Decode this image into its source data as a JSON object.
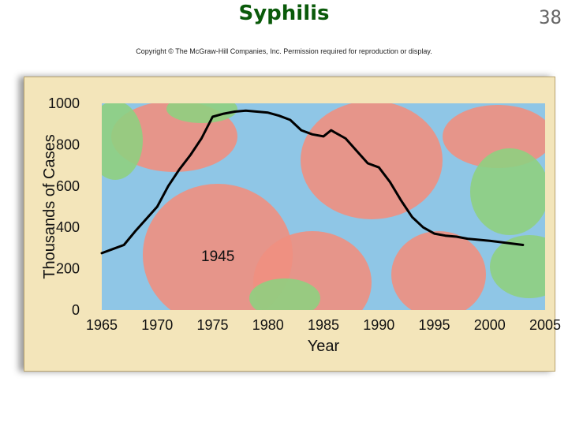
{
  "slide": {
    "title": "Syphilis",
    "number": "38",
    "copyright": "Copyright © The McGraw-Hill Companies, Inc. Permission required for reproduction or display."
  },
  "colors": {
    "title": "#0a5a0a",
    "frame": "#f3e5ba",
    "background_micrograph_blue": "#8fc6e6",
    "background_cell_red": "#ef8f7f",
    "background_cell_green": "#8fcf7f",
    "line": "#000000"
  },
  "chart_data": {
    "type": "line",
    "xlabel": "Year",
    "ylabel": "Thousands of Cases",
    "xlim": [
      1965,
      2005
    ],
    "ylim": [
      0,
      1000
    ],
    "x_ticks": [
      1965,
      1970,
      1975,
      1980,
      1985,
      1990,
      1995,
      2000,
      2005
    ],
    "y_ticks": [
      0,
      200,
      400,
      600,
      800,
      1000
    ],
    "grid": false,
    "background": "micrograph of syphilis bacteria-infected cells",
    "annotations": [
      {
        "text": "1945"
      }
    ],
    "series": [
      {
        "x": [
          1965,
          1966,
          1967,
          1968,
          1969,
          1970,
          1971,
          1972,
          1973,
          1974,
          1975,
          1976,
          1977,
          1978,
          1979,
          1980,
          1981,
          1982,
          1983,
          1984,
          1985,
          1985.7,
          1986,
          1987,
          1988,
          1989,
          1990,
          1991,
          1992,
          1993,
          1994,
          1995,
          1996,
          1997,
          1998,
          2000,
          2003
        ],
        "y": [
          275,
          295,
          315,
          380,
          440,
          500,
          600,
          680,
          750,
          830,
          935,
          950,
          960,
          965,
          960,
          955,
          940,
          920,
          870,
          850,
          840,
          870,
          860,
          830,
          770,
          710,
          690,
          620,
          530,
          450,
          400,
          370,
          360,
          355,
          345,
          335,
          315
        ]
      }
    ]
  }
}
